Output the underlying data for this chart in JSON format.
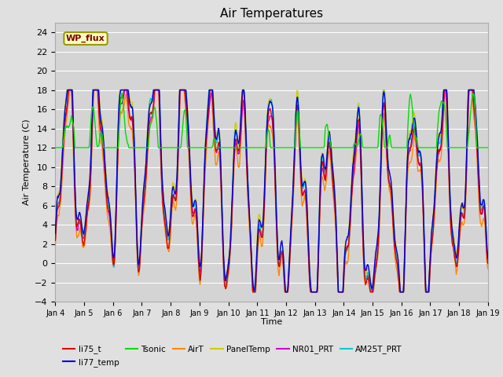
{
  "title": "Air Temperatures",
  "xlabel": "Time",
  "ylabel": "Air Temperature (C)",
  "ylim": [
    -4,
    25
  ],
  "yticks": [
    -4,
    -2,
    0,
    2,
    4,
    6,
    8,
    10,
    12,
    14,
    16,
    18,
    20,
    22,
    24
  ],
  "xtick_labels": [
    "Jan 4",
    "Jan 5",
    "Jan 6",
    "Jan 7",
    "Jan 8",
    "Jan 9",
    "Jan 10",
    "Jan 11",
    "Jan 12",
    "Jan 13",
    "Jan 14",
    "Jan 15",
    "Jan 16",
    "Jan 17",
    "Jan 18",
    "Jan 19"
  ],
  "series_colors": {
    "li75_t": "#dd0000",
    "li77_temp": "#0000dd",
    "Tsonic": "#00dd00",
    "AirT": "#ff8800",
    "PanelTemp": "#cccc00",
    "NR01_PRT": "#cc00cc",
    "AM25T_PRT": "#00cccc"
  },
  "legend_label": "WP_flux",
  "background_color": "#e0e0e0",
  "plot_bg_color": "#d4d4d4",
  "grid_color": "#ffffff",
  "n_days": 15,
  "pts_per_day": 72
}
